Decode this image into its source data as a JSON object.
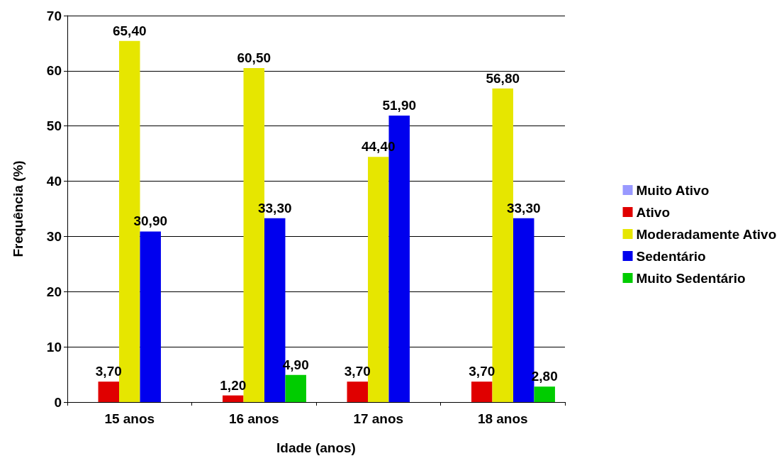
{
  "chart_data": {
    "type": "bar",
    "xlabel": "Idade (anos)",
    "ylabel": "Frequência (%)",
    "categories": [
      "15 anos",
      "16 anos",
      "17 anos",
      "18 anos"
    ],
    "series": [
      {
        "name": "Muito Ativo",
        "color": "#9999ff",
        "values": [
          null,
          null,
          null,
          null
        ]
      },
      {
        "name": "Ativo",
        "color": "#e00000",
        "values": [
          3.7,
          1.2,
          3.7,
          3.7
        ],
        "value_labels": [
          "3,70",
          "1,20",
          "3,70",
          "3,70"
        ]
      },
      {
        "name": "Moderadamente Ativo",
        "color": "#e6e600",
        "values": [
          65.4,
          60.5,
          44.4,
          56.8
        ],
        "value_labels": [
          "65,40",
          "60,50",
          "44,40",
          "56,80"
        ]
      },
      {
        "name": "Sedentário",
        "color": "#0000ee",
        "values": [
          30.9,
          33.3,
          51.9,
          33.3
        ],
        "value_labels": [
          "30,90",
          "33,30",
          "51,90",
          "33,30"
        ]
      },
      {
        "name": "Muito Sedentário",
        "color": "#00cc00",
        "values": [
          null,
          4.9,
          null,
          2.8
        ],
        "value_labels": [
          null,
          "4,90",
          null,
          "2,80"
        ]
      }
    ],
    "ylim": [
      0,
      70
    ],
    "yticks": [
      0,
      10,
      20,
      30,
      40,
      50,
      60,
      70
    ],
    "grid": "y",
    "legend": "right"
  }
}
